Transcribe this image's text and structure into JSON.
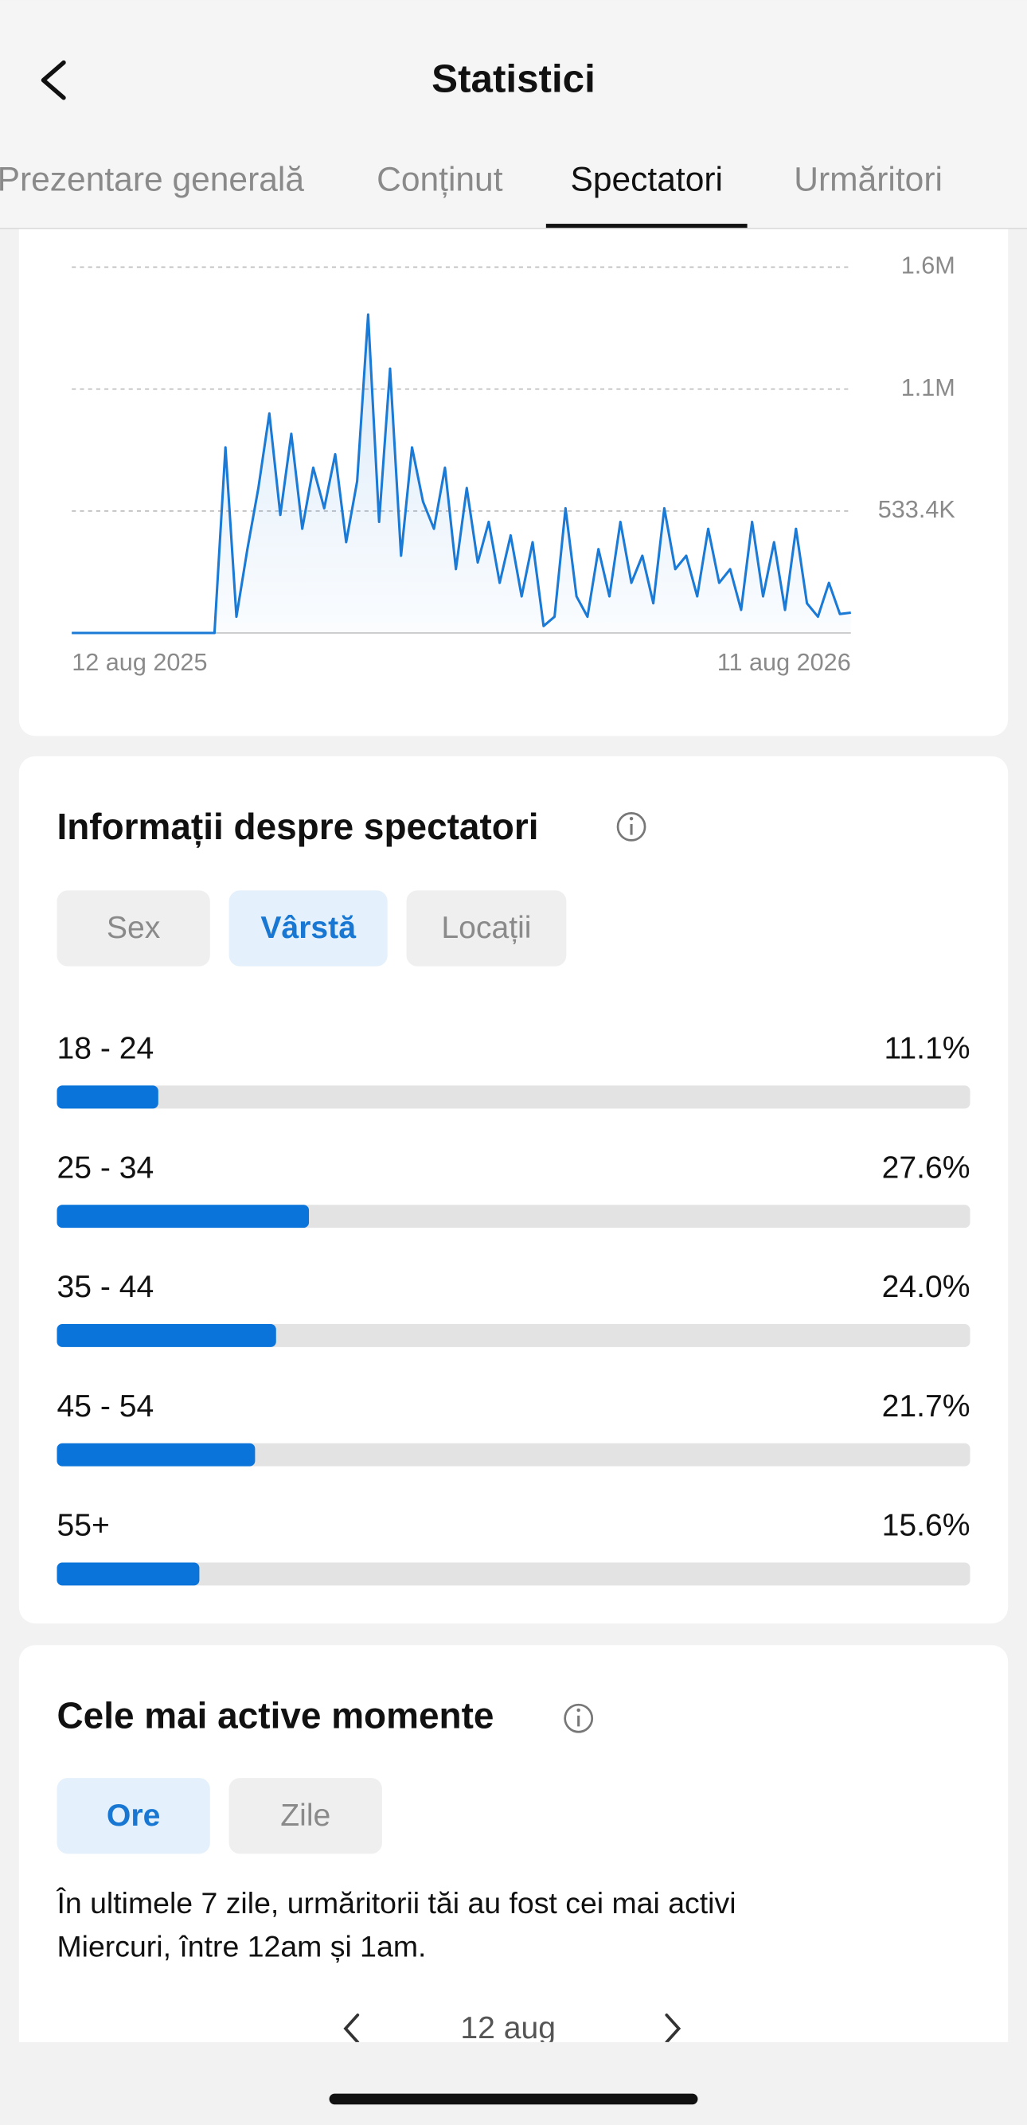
{
  "header": {
    "title": "Statistici"
  },
  "tabs": [
    "Prezentare generală",
    "Conținut",
    "Spectatori",
    "Urmăritori"
  ],
  "active_tab": 2,
  "chart_data": [
    {
      "type": "line",
      "categories": [
        "12 aug 2025",
        null,
        null,
        null,
        null,
        null,
        null,
        null,
        null,
        null,
        null,
        null,
        null,
        null,
        null,
        null,
        null,
        null,
        null,
        null,
        null,
        null,
        null,
        null,
        null,
        null,
        null,
        null,
        null,
        null,
        null,
        null,
        null,
        null,
        null,
        null,
        null,
        null,
        null,
        null,
        null,
        null,
        null,
        null,
        null,
        null,
        null,
        null,
        null,
        null,
        null,
        null,
        null,
        null,
        null,
        null,
        null,
        null,
        null,
        null,
        null,
        null,
        null,
        null,
        null,
        null,
        null,
        null,
        null,
        null,
        null,
        "11 aug 2026"
      ],
      "series": [
        {
          "color": "#1a7ad6",
          "values": [
            0,
            0,
            0,
            0,
            0,
            0,
            0,
            0,
            0,
            0,
            0,
            0,
            0,
            0,
            812000,
            71000,
            367000,
            634000,
            960000,
            516000,
            871000,
            456000,
            723000,
            545000,
            782000,
            397000,
            664000,
            1393000,
            486000,
            1156000,
            338000,
            812000,
            575000,
            456000,
            723000,
            279000,
            634000,
            308000,
            486000,
            219000,
            427000,
            160000,
            397000,
            30000,
            71000,
            545000,
            160000,
            71000,
            367000,
            160000,
            486000,
            219000,
            338000,
            130000,
            545000,
            279000,
            338000,
            160000,
            456000,
            219000,
            279000,
            101000,
            486000,
            160000,
            397000,
            101000,
            456000,
            130000,
            71000,
            219000,
            83000,
            89000
          ]
        }
      ],
      "ylim": [
        0,
        1600200
      ],
      "yticks": [
        {
          "value": 533400,
          "label": "533.4K"
        },
        {
          "value": 1066800,
          "label": "1.1M"
        },
        {
          "value": 1600200,
          "label": "1.6M"
        }
      ],
      "grid": true
    },
    {
      "type": "bar",
      "title": "Informații despre spectatori",
      "filters": [
        "Sex",
        "Vârstă",
        "Locații"
      ],
      "active_filter": 1,
      "categories": [
        "18 - 24",
        "25 - 34",
        "35 - 44",
        "45 - 54",
        "55+"
      ],
      "values": [
        11.1,
        27.6,
        24.0,
        21.7,
        15.6
      ],
      "value_labels": [
        "11.1%",
        "27.6%",
        "24.0%",
        "21.7%",
        "15.6%"
      ],
      "xlim": [
        0,
        100
      ],
      "color": "#0a74da"
    }
  ],
  "active_moments": {
    "title": "Cele mai active momente",
    "filters": [
      "Ore",
      "Zile"
    ],
    "active_filter": 0,
    "text_lines": [
      "În ultimele 7 zile, urmăritorii tăi au fost cei mai activi",
      "Miercuri, între 12am și 1am."
    ],
    "date": "12 aug"
  }
}
